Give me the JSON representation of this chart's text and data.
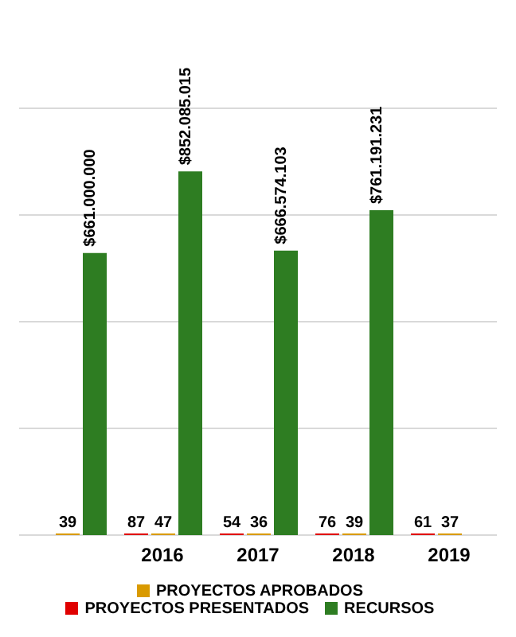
{
  "chart_data": {
    "type": "bar",
    "categories": [
      null,
      "2016",
      "2017",
      "2018",
      "2019"
    ],
    "series": [
      {
        "name": "PROYECTOS PRESENTADOS",
        "color": "#e00000",
        "values": [
          null,
          87,
          54,
          76,
          61
        ],
        "value_labels": [
          null,
          "87",
          "54",
          "76",
          "61"
        ]
      },
      {
        "name": "PROYECTOS APROBADOS",
        "color": "#d99a00",
        "values": [
          39,
          47,
          36,
          39,
          37
        ],
        "value_labels": [
          "39",
          "47",
          "36",
          "39",
          "37"
        ]
      },
      {
        "name": "RECURSOS",
        "color": "#2e7d22",
        "values": [
          661000000,
          852085015,
          666574103,
          761191231,
          null
        ],
        "value_labels": [
          "$661.000.000",
          "$852.085.015",
          "$666.574.103",
          "$761.191.231",
          null
        ]
      }
    ],
    "relative": false,
    "grid": true,
    "legend": "bottom"
  }
}
